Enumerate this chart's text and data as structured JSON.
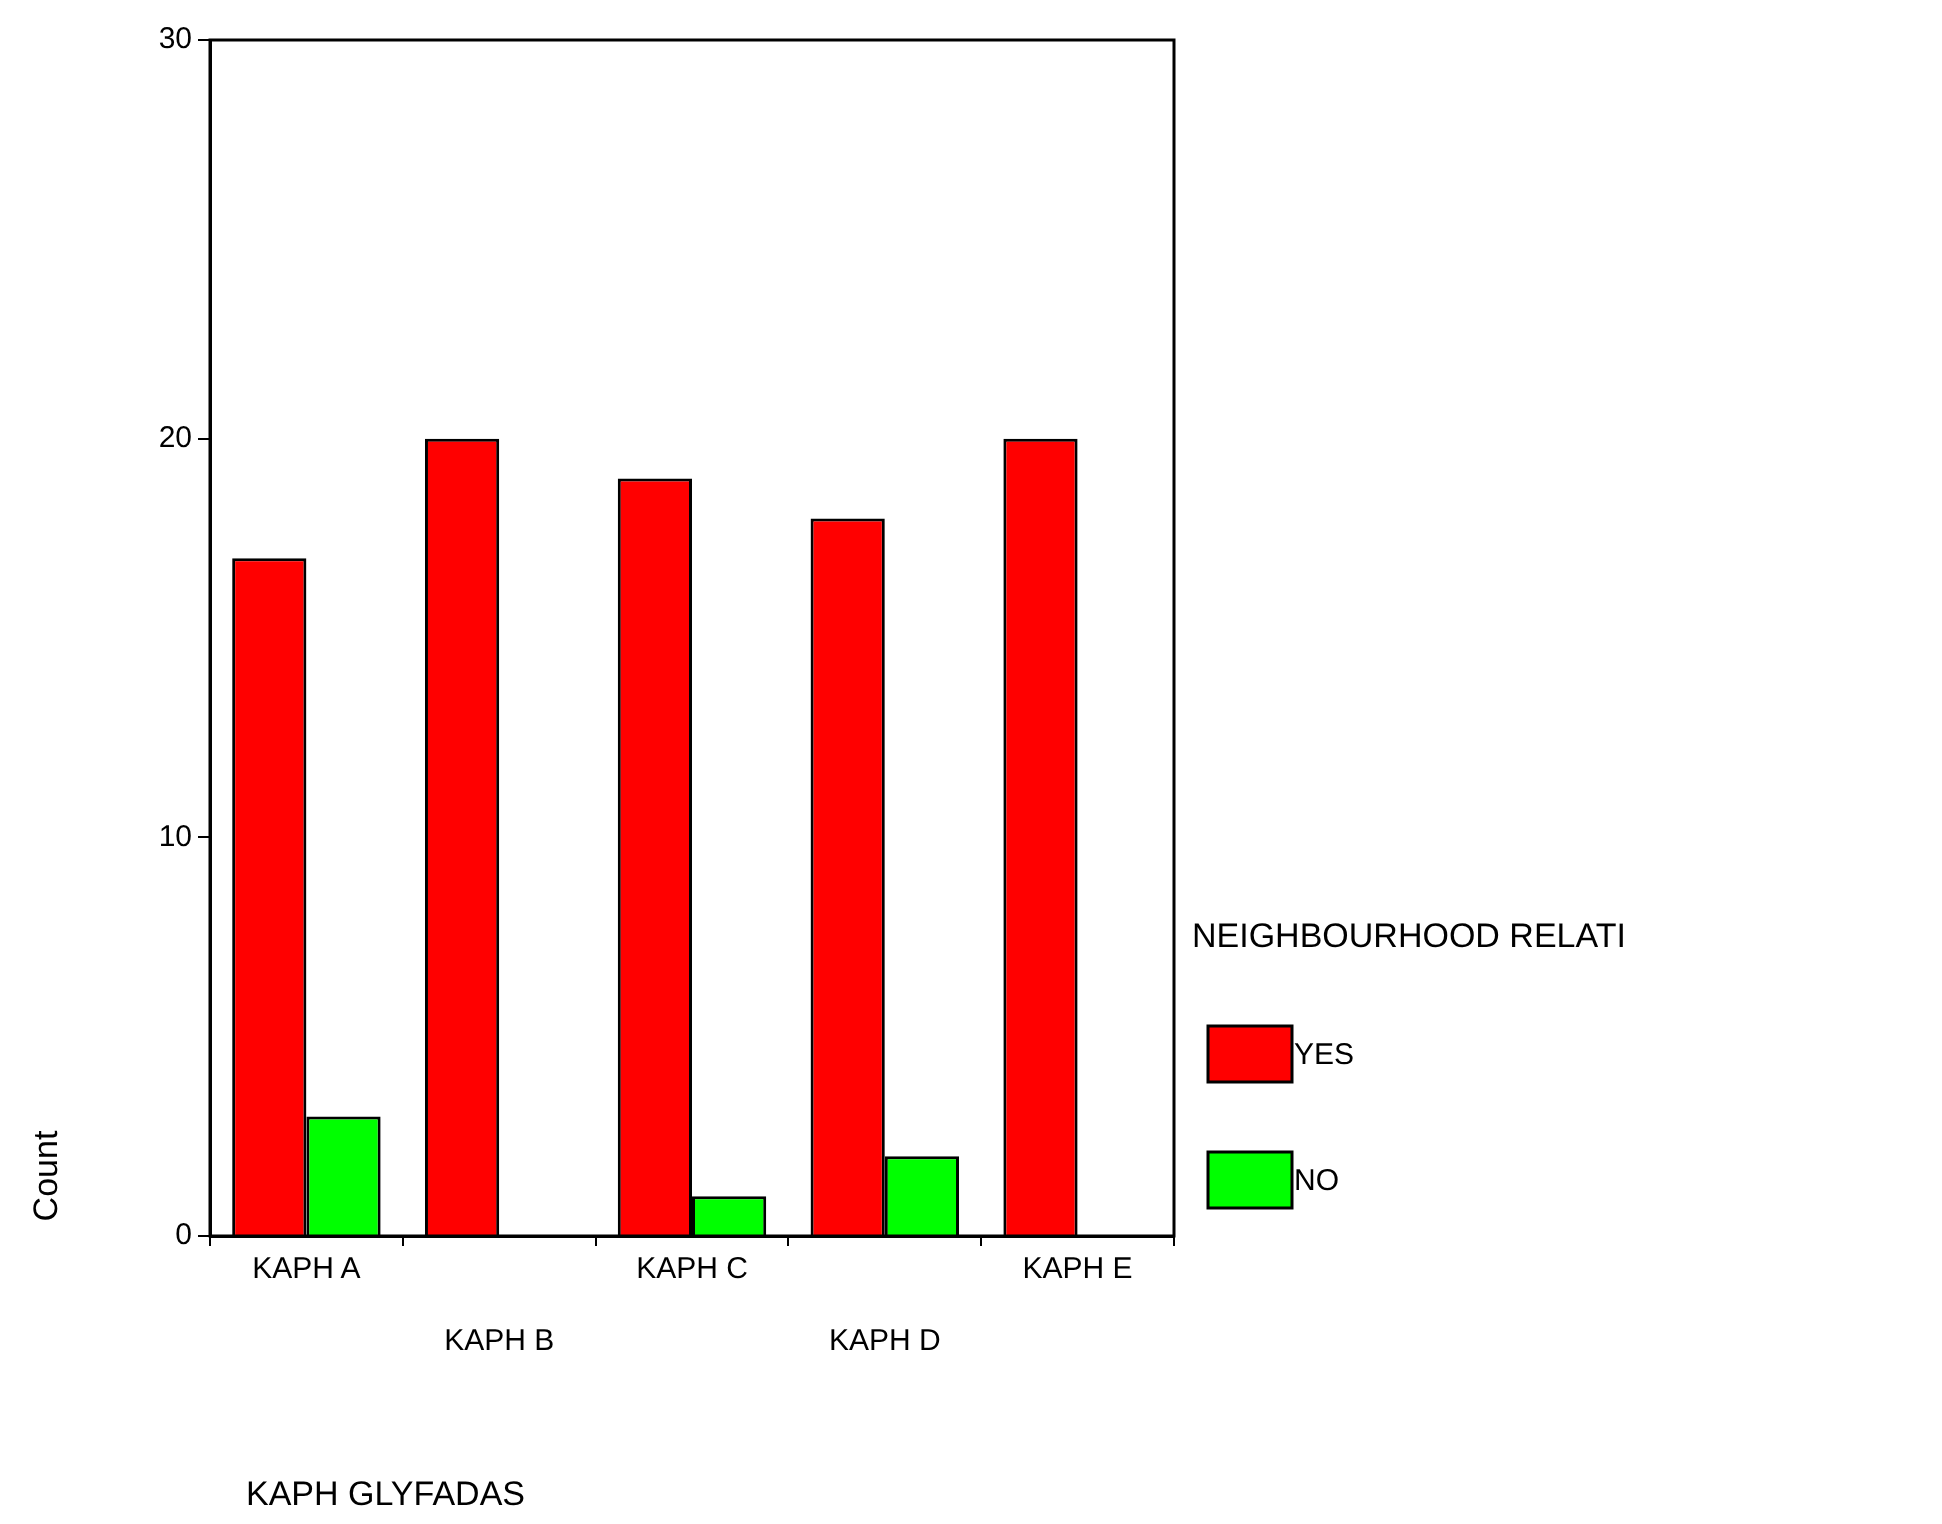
{
  "chart_data": {
    "type": "bar",
    "xlabel": "KAPH GLYFADAS",
    "ylabel": "Count",
    "legend_title": "NEIGHBOURHOOD RELATI",
    "categories": [
      "KAPH A",
      "KAPH B",
      "KAPH C",
      "KAPH D",
      "KAPH E"
    ],
    "series": [
      {
        "name": "YES",
        "color": "#ff0000",
        "values": [
          17,
          20,
          19,
          18,
          20
        ]
      },
      {
        "name": "NO",
        "color": "#00ff00",
        "values": [
          3,
          null,
          1,
          2,
          null
        ]
      }
    ],
    "ylim": [
      0,
      30
    ],
    "yticks": [
      0,
      10,
      20,
      30
    ],
    "grid": false,
    "legend": "right"
  }
}
